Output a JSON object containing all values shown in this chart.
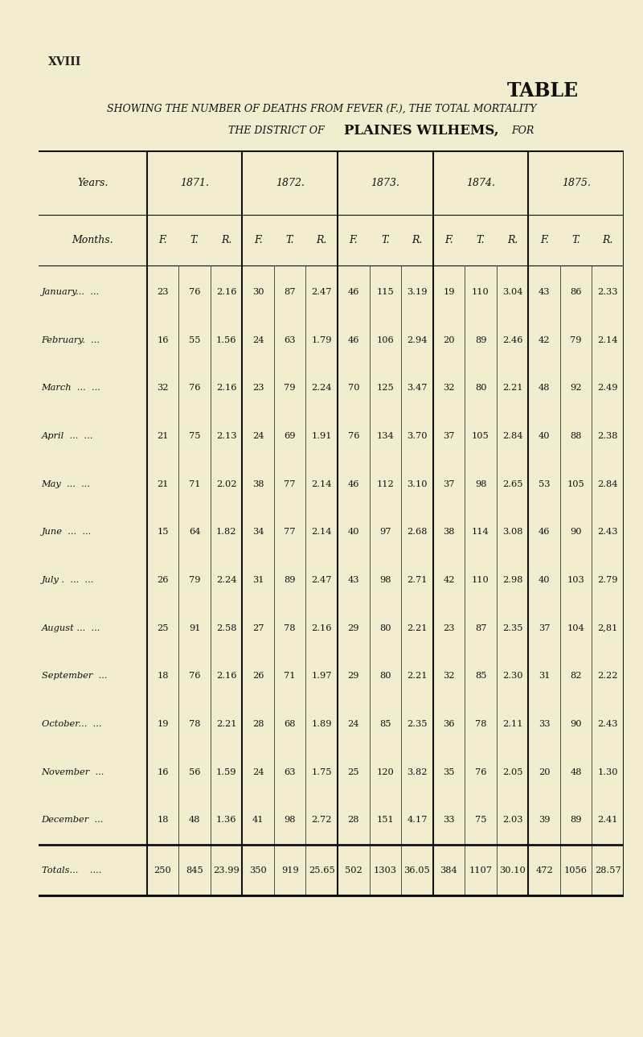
{
  "bg_color": "#f2edce",
  "title_xviii": "XVIII",
  "title_table": "TABLE",
  "subtitle1": "SHOWING THE NUMBER OF DEATHS FROM FEVER (F.), THE TOTAL MORTALITY",
  "subtitle2_prefix": "THE DISTRICT OF",
  "subtitle2_bold": "PLAINES WILHEMS,",
  "subtitle2_suffix": "FOR",
  "years": [
    "1871.",
    "1872.",
    "1873.",
    "1874.",
    "1875."
  ],
  "col_headers": [
    "F.",
    "T.",
    "R."
  ],
  "months": [
    "January...  ...",
    "February.  ...",
    "March  ...  ...",
    "April  ...  ...",
    "May  ...  ...",
    "June  ...  ...",
    "July .  ...  ...",
    "August ...  ...",
    "September  ...",
    "October...  ...",
    "November  ...",
    "December  ..."
  ],
  "data": [
    [
      [
        23,
        76,
        "2.16"
      ],
      [
        30,
        87,
        "2.47"
      ],
      [
        46,
        115,
        "3.19"
      ],
      [
        19,
        110,
        "3.04"
      ],
      [
        43,
        86,
        "2.33"
      ]
    ],
    [
      [
        16,
        55,
        "1.56"
      ],
      [
        24,
        63,
        "1.79"
      ],
      [
        46,
        106,
        "2.94"
      ],
      [
        20,
        89,
        "2.46"
      ],
      [
        42,
        79,
        "2.14"
      ]
    ],
    [
      [
        32,
        76,
        "2.16"
      ],
      [
        23,
        79,
        "2.24"
      ],
      [
        70,
        125,
        "3.47"
      ],
      [
        32,
        80,
        "2.21"
      ],
      [
        48,
        92,
        "2.49"
      ]
    ],
    [
      [
        21,
        75,
        "2.13"
      ],
      [
        24,
        69,
        "1.91"
      ],
      [
        76,
        134,
        "3.70"
      ],
      [
        37,
        105,
        "2.84"
      ],
      [
        40,
        88,
        "2.38"
      ]
    ],
    [
      [
        21,
        71,
        "2.02"
      ],
      [
        38,
        77,
        "2.14"
      ],
      [
        46,
        112,
        "3.10"
      ],
      [
        37,
        98,
        "2.65"
      ],
      [
        53,
        105,
        "2.84"
      ]
    ],
    [
      [
        15,
        64,
        "1.82"
      ],
      [
        34,
        77,
        "2.14"
      ],
      [
        40,
        97,
        "2.68"
      ],
      [
        38,
        114,
        "3.08"
      ],
      [
        46,
        90,
        "2.43"
      ]
    ],
    [
      [
        26,
        79,
        "2.24"
      ],
      [
        31,
        89,
        "2.47"
      ],
      [
        43,
        98,
        "2.71"
      ],
      [
        42,
        110,
        "2.98"
      ],
      [
        40,
        103,
        "2.79"
      ]
    ],
    [
      [
        25,
        91,
        "2.58"
      ],
      [
        27,
        78,
        "2.16"
      ],
      [
        29,
        80,
        "2.21"
      ],
      [
        23,
        87,
        "2.35"
      ],
      [
        37,
        104,
        "2,81"
      ]
    ],
    [
      [
        18,
        76,
        "2.16"
      ],
      [
        26,
        71,
        "1.97"
      ],
      [
        29,
        80,
        "2.21"
      ],
      [
        32,
        85,
        "2.30"
      ],
      [
        31,
        82,
        "2.22"
      ]
    ],
    [
      [
        19,
        78,
        "2.21"
      ],
      [
        28,
        68,
        "1.89"
      ],
      [
        24,
        85,
        "2.35"
      ],
      [
        36,
        78,
        "2.11"
      ],
      [
        33,
        90,
        "2.43"
      ]
    ],
    [
      [
        16,
        56,
        "1.59"
      ],
      [
        24,
        63,
        "1.75"
      ],
      [
        25,
        120,
        "3.82"
      ],
      [
        35,
        76,
        "2.05"
      ],
      [
        20,
        48,
        "1.30"
      ]
    ],
    [
      [
        18,
        48,
        "1.36"
      ],
      [
        41,
        98,
        "2.72"
      ],
      [
        28,
        151,
        "4.17"
      ],
      [
        33,
        75,
        "2.03"
      ],
      [
        39,
        89,
        "2.41"
      ]
    ]
  ],
  "totals": [
    [
      250,
      845,
      "23.99"
    ],
    [
      350,
      919,
      "25.65"
    ],
    [
      502,
      1303,
      "36.05"
    ],
    [
      384,
      1107,
      "30.10"
    ],
    [
      472,
      1056,
      "28.57"
    ]
  ]
}
